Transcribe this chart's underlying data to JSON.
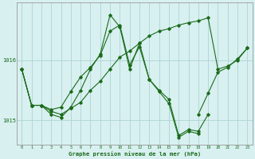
{
  "xlabel": "Graphe pression niveau de la mer (hPa)",
  "bg_color": "#d8f0f0",
  "line_color": "#1a6b1a",
  "grid_color": "#aed4d4",
  "ylim": [
    1014.6,
    1016.95
  ],
  "xlim": [
    -0.5,
    23.5
  ],
  "yticks": [
    1015,
    1016
  ],
  "xticks": [
    0,
    1,
    2,
    3,
    4,
    5,
    6,
    7,
    8,
    9,
    10,
    11,
    12,
    13,
    14,
    15,
    16,
    17,
    18,
    19,
    20,
    21,
    22,
    23
  ],
  "series": [
    [
      1015.85,
      1015.25,
      1015.25,
      1015.15,
      1015.1,
      1015.2,
      1015.3,
      1015.5,
      1015.65,
      1015.85,
      1016.05,
      1016.15,
      1016.28,
      1016.4,
      1016.48,
      1016.52,
      1016.58,
      1016.62,
      1016.65,
      1016.7,
      1015.85,
      1015.9,
      1016.0,
      1016.2
    ],
    [
      1015.85,
      1015.25,
      1015.25,
      1015.1,
      1015.05,
      1015.22,
      1015.5,
      1015.85,
      1016.1,
      1016.75,
      1016.55,
      1015.85,
      1016.28,
      1015.68,
      1015.5,
      1015.35,
      1014.75,
      1014.85,
      1014.82,
      1015.1,
      null,
      null,
      null,
      null
    ],
    [
      1015.85,
      1015.25,
      1015.25,
      1015.18,
      1015.22,
      1015.48,
      1015.72,
      1015.88,
      1016.08,
      1016.48,
      1016.58,
      1015.92,
      1016.22,
      1015.68,
      1015.48,
      1015.28,
      1014.72,
      1014.82,
      1014.78,
      null,
      null,
      null,
      null,
      null
    ],
    [
      null,
      null,
      null,
      null,
      null,
      null,
      null,
      null,
      null,
      null,
      null,
      null,
      null,
      null,
      null,
      null,
      null,
      null,
      1015.1,
      1015.45,
      1015.8,
      1015.88,
      1016.02,
      1016.2
    ]
  ]
}
